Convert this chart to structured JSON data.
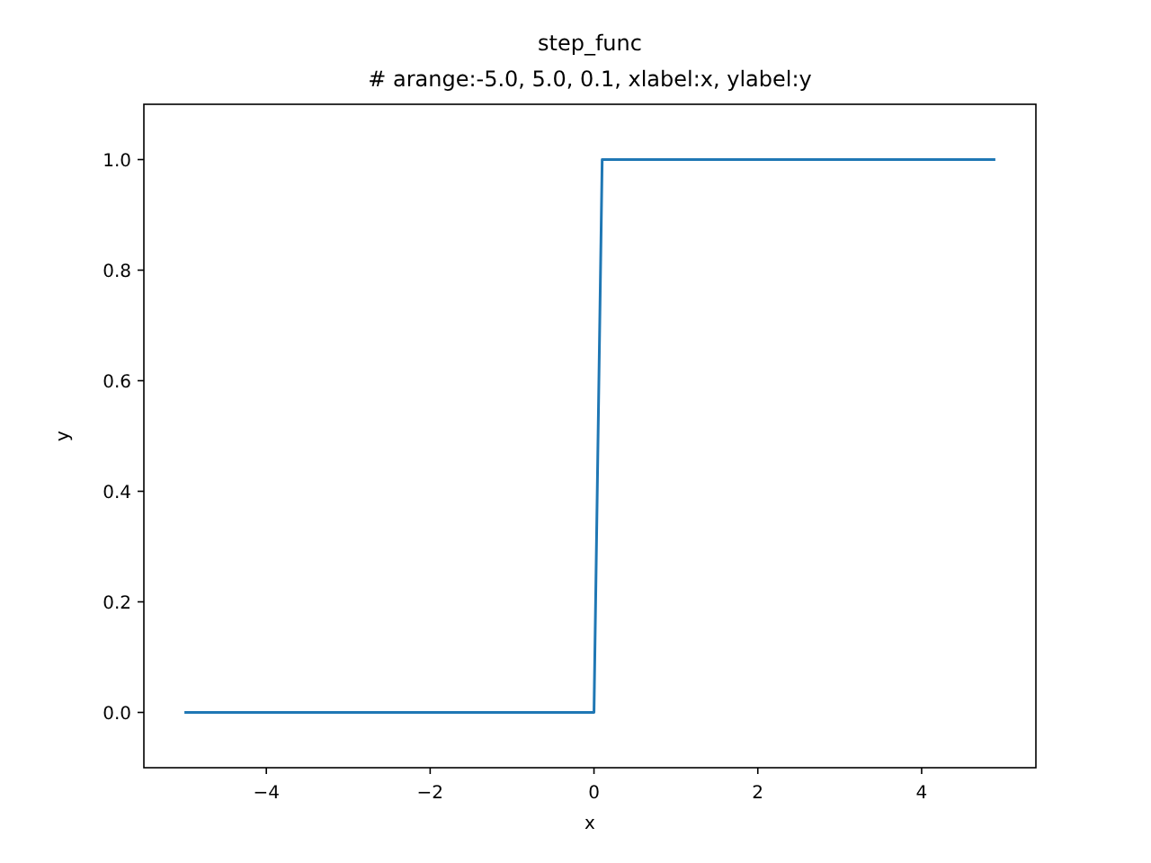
{
  "chart_data": {
    "type": "line",
    "title": "step_func",
    "subtitle": "# arange:-5.0, 5.0, 0.1, xlabel:x, ylabel:y",
    "xlabel": "x",
    "ylabel": "y",
    "series": [
      {
        "color": "#1f77b4",
        "x": [
          -5,
          0,
          0.1,
          4.9
        ],
        "values": [
          0,
          0,
          1,
          1
        ]
      }
    ],
    "xlim": [
      -5.495,
      5.395
    ],
    "xticks": [
      {
        "value": -4,
        "label": "−4"
      },
      {
        "value": -2,
        "label": "−2"
      },
      0,
      2,
      4
    ],
    "ylim": [
      -0.1,
      1.1
    ],
    "yticks": [
      {
        "value": 0,
        "label": "0.0"
      },
      {
        "value": 0.2,
        "label": "0.2"
      },
      {
        "value": 0.4,
        "label": "0.4"
      },
      {
        "value": 0.6,
        "label": "0.6"
      },
      {
        "value": 0.8,
        "label": "0.8"
      },
      {
        "value": 1,
        "label": "1.0"
      }
    ],
    "grid": false,
    "marker": "none",
    "line_style": "solid"
  }
}
